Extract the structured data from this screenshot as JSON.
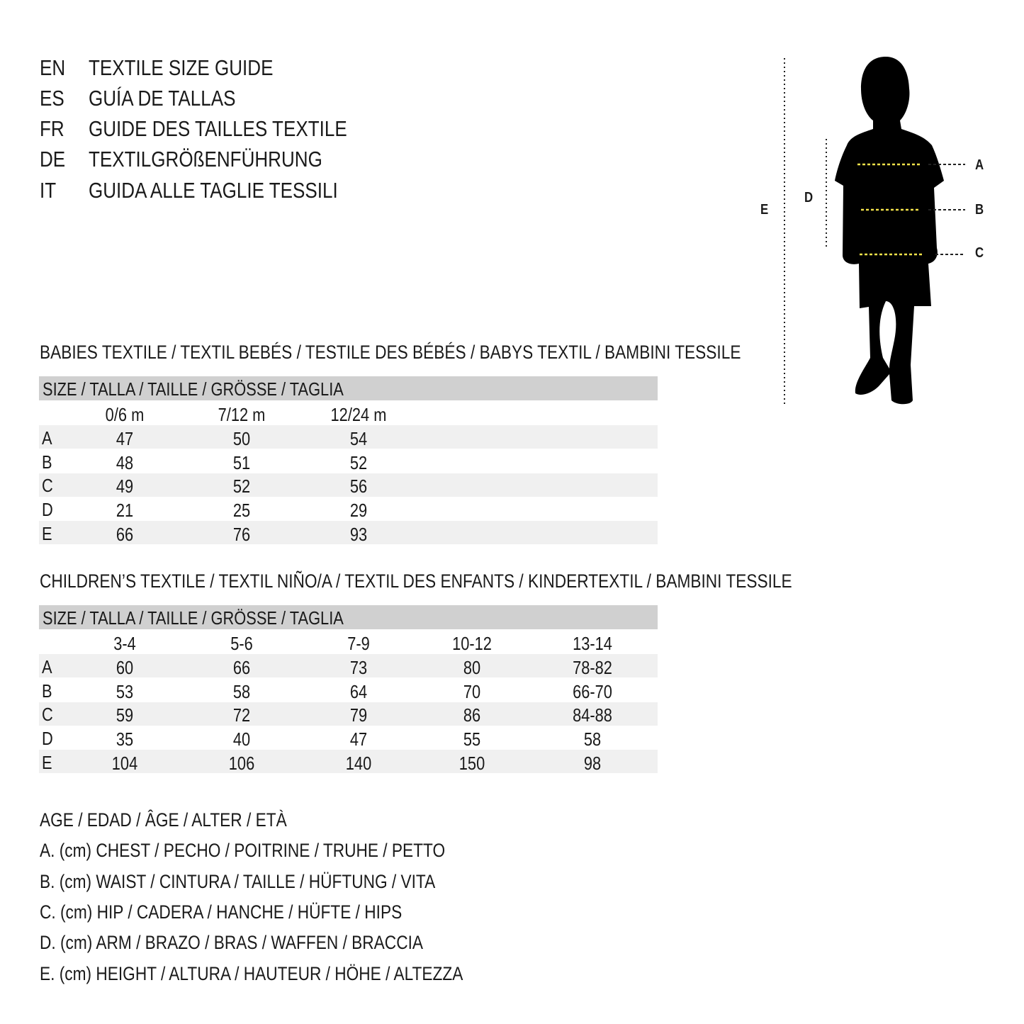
{
  "titles": [
    {
      "code": "EN",
      "text": "TEXTILE SIZE GUIDE"
    },
    {
      "code": "ES",
      "text": "GUÍA DE TALLAS"
    },
    {
      "code": "FR",
      "text": "GUIDE DES TAILLES TEXTILE"
    },
    {
      "code": "DE",
      "text": "TEXTILGRÖßENFÜHRUNG"
    },
    {
      "code": "IT",
      "text": "GUIDA ALLE TAGLIE TESSILI"
    }
  ],
  "figure": {
    "labels": {
      "A": "A",
      "B": "B",
      "C": "C",
      "D": "D",
      "E": "E"
    },
    "measure_color": "#f2e24a"
  },
  "babies": {
    "heading": "BABIES TEXTILE / TEXTIL BEBÉS / TESTILE DES BÉBÉS / BABYS TEXTIL / BAMBINI TESSILE",
    "size_header": "SIZE / TALLA / TAILLE / GRÖSSE / TAGLIA",
    "columns": [
      "0/6 m",
      "7/12 m",
      "12/24 m"
    ],
    "rows": [
      {
        "label": "A",
        "values": [
          "47",
          "50",
          "54"
        ]
      },
      {
        "label": "B",
        "values": [
          "48",
          "51",
          "52"
        ]
      },
      {
        "label": "C",
        "values": [
          "49",
          "52",
          "56"
        ]
      },
      {
        "label": "D",
        "values": [
          "21",
          "25",
          "29"
        ]
      },
      {
        "label": "E",
        "values": [
          "66",
          "76",
          "93"
        ]
      }
    ]
  },
  "children": {
    "heading": "CHILDREN’S TEXTILE / TEXTIL NIÑO/A / TEXTIL DES ENFANTS / KINDERTEXTIL / BAMBINI TESSILE",
    "size_header": "SIZE / TALLA / TAILLE / GRÖSSE / TAGLIA",
    "columns": [
      "3-4",
      "5-6",
      "7-9",
      "10-12",
      "13-14"
    ],
    "rows": [
      {
        "label": "A",
        "values": [
          "60",
          "66",
          "73",
          "80",
          "78-82"
        ]
      },
      {
        "label": "B",
        "values": [
          "53",
          "58",
          "64",
          "70",
          "66-70"
        ]
      },
      {
        "label": "C",
        "values": [
          "59",
          "72",
          "79",
          "86",
          "84-88"
        ]
      },
      {
        "label": "D",
        "values": [
          "35",
          "40",
          "47",
          "55",
          "58"
        ]
      },
      {
        "label": "E",
        "values": [
          "104",
          "106",
          "140",
          "150",
          "98"
        ]
      }
    ]
  },
  "legend": [
    "AGE / EDAD / ÂGE / ALTER / ETÀ",
    "A. (cm) CHEST / PECHO / POITRINE / TRUHE / PETTO",
    "B. (cm) WAIST / CINTURA / TAILLE / HÜFTUNG / VITA",
    "C. (cm) HIP / CADERA / HANCHE / HÜFTE / HIPS",
    "D. (cm) ARM / BRAZO / BRAS / WAFFEN / BRACCIA",
    "E. (cm) HEIGHT / ALTURA / HAUTEUR / HÖHE / ALTEZZA"
  ],
  "colors": {
    "header_band": "#d0d0d0",
    "stripe": "#f0f0f0"
  }
}
